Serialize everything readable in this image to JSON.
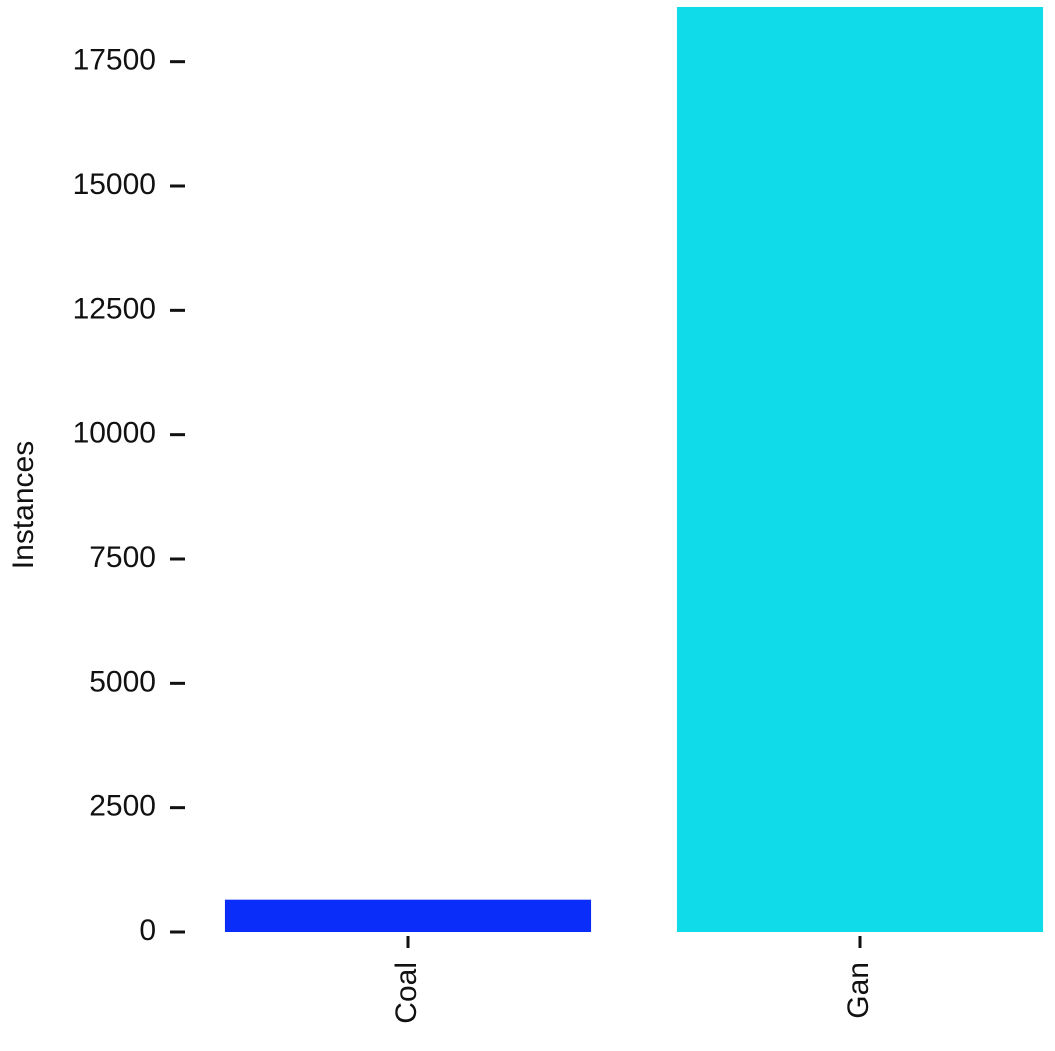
{
  "chart_data": {
    "type": "bar",
    "y_label": "Instances",
    "categories": [
      "Coal",
      "Gan"
    ],
    "values": [
      650,
      18600
    ],
    "colors": [
      "#0b2dfa",
      "#0fdbe9"
    ],
    "ylim": [
      0,
      18700
    ],
    "yticks": [
      0,
      2500,
      5000,
      7500,
      10000,
      12500,
      15000,
      17500
    ],
    "grid": false
  }
}
